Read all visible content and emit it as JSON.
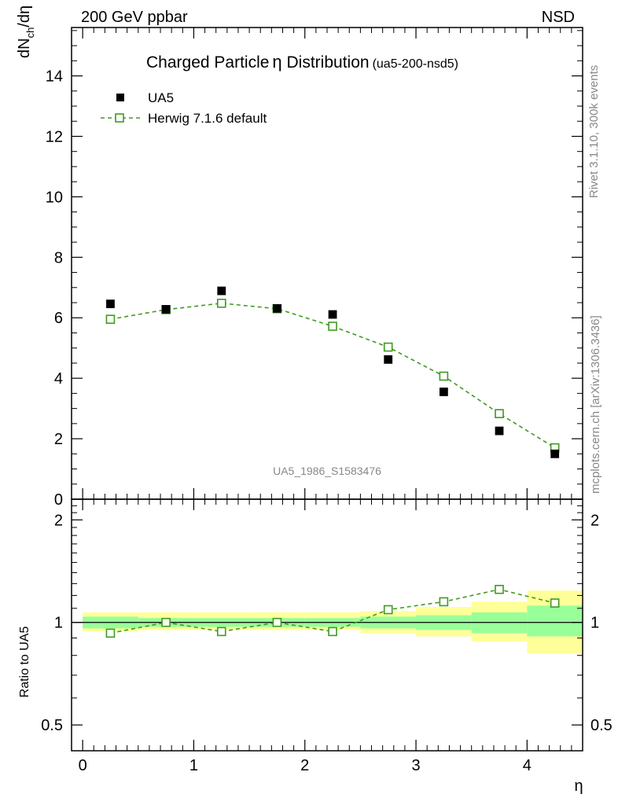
{
  "header": {
    "left_title": "200 GeV ppbar",
    "right_title": "NSD",
    "side_note_top": "Rivet 3.1.10,  300k events",
    "side_note_bottom": "mcplots.cern.ch [arXiv:1306.3436]"
  },
  "main_plot": {
    "title": "Charged Particle",
    "title_symbol": "η",
    "title_tail": " Distribution",
    "title_suffix": "(ua5-200-nsd5)",
    "ylabel_prefix": "dN",
    "ylabel_subscript": "ch",
    "ylabel_suffix": "/dη",
    "watermark": "UA5_1986_S1583476",
    "ylim": [
      0,
      15.6
    ],
    "yticks": [
      0,
      2,
      4,
      6,
      8,
      10,
      12,
      14
    ]
  },
  "ratio_plot": {
    "ylabel": "Ratio to UA5",
    "yticks": [
      "0.5",
      "1",
      "2"
    ],
    "ylim": [
      0.42,
      2.3
    ]
  },
  "x_axis": {
    "label": "η",
    "xlim": [
      -0.1,
      4.5
    ],
    "ticks": [
      "0",
      "1",
      "2",
      "3",
      "4"
    ]
  },
  "legend": {
    "data_label": "UA5",
    "mc_label": "Herwig 7.1.6 default"
  },
  "colors": {
    "data": "#000000",
    "mc": "#3f9a1f",
    "band_inner": "#99ff99",
    "band_outer": "#ffff99"
  },
  "chart_data": [
    {
      "type": "scatter",
      "title": "Charged Particle η Distribution (ua5-200-nsd5)",
      "xlabel": "η",
      "ylabel": "dNch/dη",
      "xlim": [
        -0.1,
        4.5
      ],
      "ylim": [
        0,
        15.6
      ],
      "series": [
        {
          "name": "UA5",
          "x": [
            0.25,
            0.75,
            1.25,
            1.75,
            2.25,
            2.75,
            3.25,
            3.75,
            4.25
          ],
          "values": [
            6.46,
            6.28,
            6.89,
            6.31,
            6.11,
            4.62,
            3.55,
            2.26,
            1.5
          ]
        },
        {
          "name": "Herwig 7.1.6 default",
          "x": [
            0.25,
            0.75,
            1.25,
            1.75,
            2.25,
            2.75,
            3.25,
            3.75,
            4.25
          ],
          "values": [
            5.95,
            6.27,
            6.48,
            6.3,
            5.72,
            5.03,
            4.07,
            2.83,
            1.7
          ]
        }
      ]
    },
    {
      "type": "line",
      "xlabel": "η",
      "ylabel": "Ratio to UA5",
      "scale": "log",
      "ylim": [
        0.42,
        2.3
      ],
      "series": [
        {
          "name": "Herwig 7.1.6 default",
          "x": [
            0.25,
            0.75,
            1.25,
            1.75,
            2.25,
            2.75,
            3.25,
            3.75,
            4.25
          ],
          "values": [
            0.93,
            1.0,
            0.94,
            1.0,
            0.94,
            1.09,
            1.15,
            1.25,
            1.14
          ]
        }
      ],
      "bands": {
        "bin_edges": [
          0,
          0.5,
          1,
          1.5,
          2,
          2.5,
          3,
          3.5,
          4,
          4.5
        ],
        "inner_low": [
          0.96,
          0.97,
          0.97,
          0.97,
          0.97,
          0.96,
          0.95,
          0.93,
          0.91
        ],
        "inner_high": [
          1.04,
          1.03,
          1.03,
          1.03,
          1.03,
          1.04,
          1.05,
          1.07,
          1.12
        ],
        "outer_low": [
          0.94,
          0.95,
          0.95,
          0.95,
          0.95,
          0.93,
          0.91,
          0.88,
          0.81
        ],
        "outer_high": [
          1.07,
          1.07,
          1.07,
          1.07,
          1.07,
          1.08,
          1.11,
          1.15,
          1.24
        ]
      }
    }
  ]
}
